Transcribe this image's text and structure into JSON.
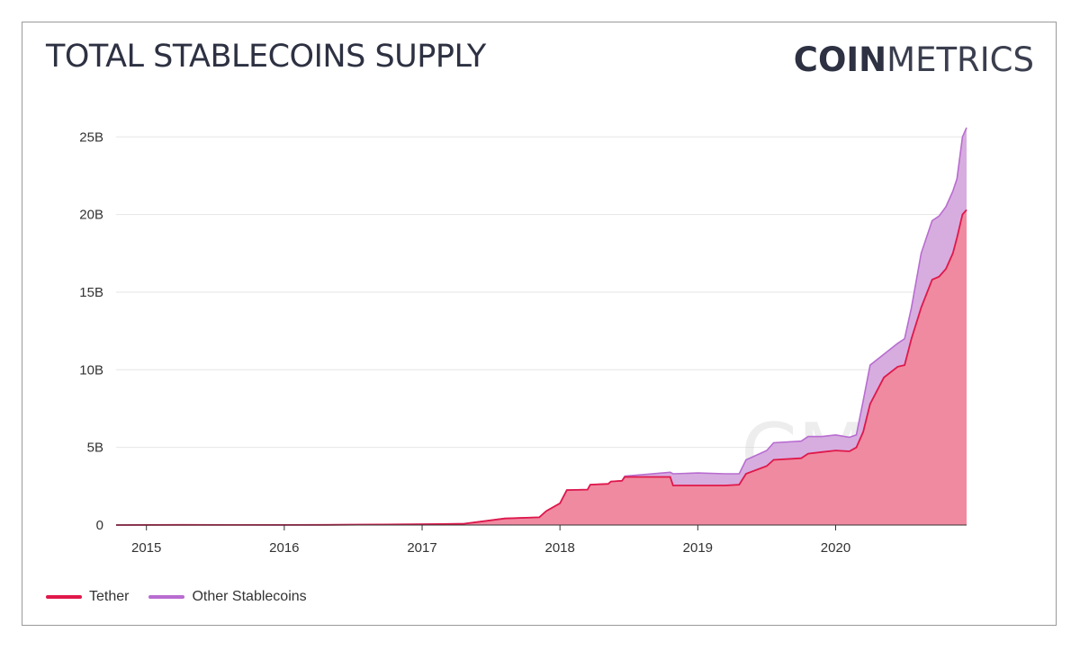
{
  "header": {
    "title": "TOTAL STABLECOINS SUPPLY",
    "logo_bold": "COIN",
    "logo_light": "METRICS"
  },
  "watermark": "CM",
  "legend": [
    {
      "label": "Tether",
      "color": "#e0184a"
    },
    {
      "label": "Other Stablecoins",
      "color": "#b86cd0"
    }
  ],
  "chart_data": {
    "type": "area",
    "title": "TOTAL STABLECOINS SUPPLY",
    "xlabel": "",
    "ylabel": "",
    "xlim": [
      2014.78,
      2020.95
    ],
    "ylim": [
      0,
      26000000000
    ],
    "y_ticks": [
      0,
      5000000000,
      10000000000,
      15000000000,
      20000000000,
      25000000000
    ],
    "y_tick_labels": [
      "0",
      "5B",
      "10B",
      "15B",
      "20B",
      "25B"
    ],
    "x_ticks": [
      2015,
      2016,
      2017,
      2018,
      2019,
      2020
    ],
    "x_tick_labels": [
      "2015",
      "2016",
      "2017",
      "2018",
      "2019",
      "2020"
    ],
    "stacked": true,
    "grid": "horizontal",
    "legend_position": "bottom-left",
    "x": [
      2014.78,
      2015.25,
      2016.0,
      2016.3,
      2017.0,
      2017.3,
      2017.45,
      2017.6,
      2017.85,
      2017.9,
      2018.0,
      2018.05,
      2018.2,
      2018.22,
      2018.35,
      2018.37,
      2018.45,
      2018.47,
      2018.8,
      2018.82,
      2019.0,
      2019.2,
      2019.3,
      2019.35,
      2019.5,
      2019.55,
      2019.75,
      2019.8,
      2019.9,
      2020.0,
      2020.1,
      2020.15,
      2020.2,
      2020.25,
      2020.35,
      2020.45,
      2020.5,
      2020.55,
      2020.62,
      2020.7,
      2020.75,
      2020.8,
      2020.85,
      2020.88,
      2020.92,
      2020.95
    ],
    "series": [
      {
        "name": "Tether",
        "color": "#e0184a",
        "fill": "#f08aa0",
        "values": [
          0,
          10000000,
          7000000,
          10000000,
          50000000,
          80000000,
          250000000,
          420000000,
          500000000,
          900000000,
          1400000000,
          2250000000,
          2280000000,
          2600000000,
          2650000000,
          2800000000,
          2850000000,
          3100000000,
          3100000000,
          2550000000,
          2550000000,
          2550000000,
          2600000000,
          3300000000,
          3800000000,
          4200000000,
          4300000000,
          4600000000,
          4700000000,
          4800000000,
          4750000000,
          5000000000,
          6000000000,
          7800000000,
          9500000000,
          10200000000,
          10300000000,
          12000000000,
          14000000000,
          15800000000,
          16000000000,
          16500000000,
          17500000000,
          18500000000,
          20000000000,
          20300000000
        ]
      },
      {
        "name": "Other Stablecoins",
        "color": "#b86cd0",
        "fill": "#d7addf",
        "values": [
          0,
          0,
          0,
          0,
          0,
          0,
          0,
          0,
          0,
          0,
          0,
          0,
          0,
          0,
          0,
          0,
          0,
          50000000,
          300000000,
          750000000,
          800000000,
          750000000,
          700000000,
          900000000,
          1000000000,
          1100000000,
          1100000000,
          1100000000,
          1000000000,
          1000000000,
          900000000,
          800000000,
          2000000000,
          2500000000,
          1500000000,
          1500000000,
          1700000000,
          2000000000,
          3500000000,
          3800000000,
          3900000000,
          4000000000,
          4000000000,
          3800000000,
          5000000000,
          5300000000
        ]
      }
    ]
  }
}
